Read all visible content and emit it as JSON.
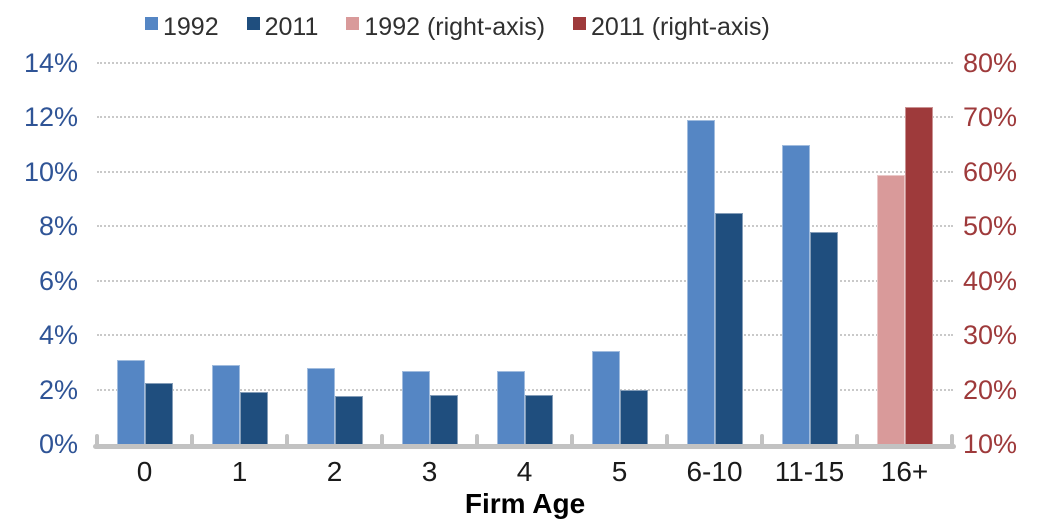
{
  "chart_data": {
    "type": "bar",
    "title": "",
    "xlabel": "Firm Age",
    "categories": [
      "0",
      "1",
      "2",
      "3",
      "4",
      "5",
      "6-10",
      "11-15",
      "16+"
    ],
    "series": [
      {
        "name": "1992",
        "axis": "left",
        "color": "#5586C4",
        "values": [
          3.1,
          2.9,
          2.8,
          2.7,
          2.7,
          3.4,
          11.9,
          11.0,
          null
        ]
      },
      {
        "name": "2011",
        "axis": "left",
        "color": "#1F4E7E",
        "values": [
          2.25,
          1.9,
          1.75,
          1.8,
          1.8,
          2.0,
          8.5,
          7.8,
          null
        ]
      },
      {
        "name": "1992 (right-axis)",
        "axis": "right",
        "color": "#D99A9A",
        "values": [
          null,
          null,
          null,
          null,
          null,
          null,
          null,
          null,
          59.5
        ]
      },
      {
        "name": "2011 (right-axis)",
        "axis": "right",
        "color": "#9E3A3B",
        "values": [
          null,
          null,
          null,
          null,
          null,
          null,
          null,
          null,
          72
        ]
      }
    ],
    "left_axis": {
      "min": 0,
      "max": 14,
      "tick_labels": [
        "0%",
        "2%",
        "4%",
        "6%",
        "8%",
        "10%",
        "12%",
        "14%"
      ],
      "label_color": "#2F5496"
    },
    "right_axis": {
      "min": 10,
      "max": 80,
      "tick_labels": [
        "10%",
        "20%",
        "30%",
        "40%",
        "50%",
        "60%",
        "70%",
        "80%"
      ],
      "label_color": "#9E3A3B"
    },
    "grid": "horizontal-dotted",
    "legend_position": "top"
  },
  "colors": {
    "gridline": "#C9C9C9",
    "axis_line": "#C2C2C2",
    "x_label": "#1A1A1A",
    "legend_text": "#303030"
  }
}
